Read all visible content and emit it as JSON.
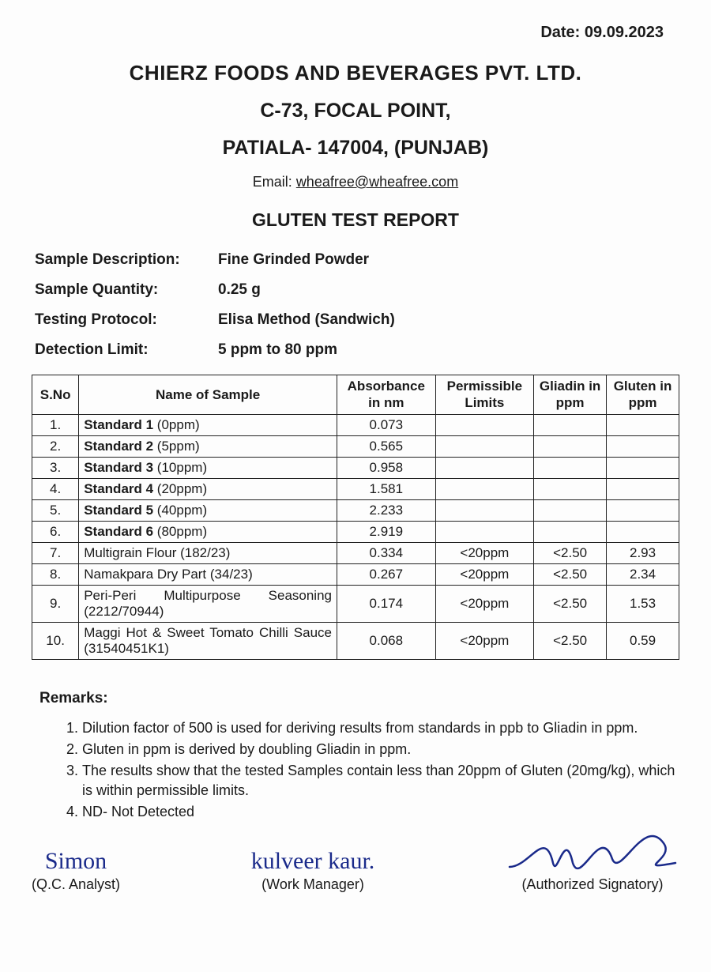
{
  "date_label": "Date: 09.09.2023",
  "header": {
    "company": "CHIERZ FOODS AND BEVERAGES PVT. LTD.",
    "addr1": "C-73, FOCAL POINT,",
    "addr2": "PATIALA- 147004, (PUNJAB)",
    "email_label": "Email: ",
    "email": "wheafree@wheafree.com",
    "report_title": "GLUTEN TEST REPORT"
  },
  "meta": {
    "sample_desc_label": "Sample Description:",
    "sample_desc": "Fine Grinded Powder",
    "sample_qty_label": "Sample Quantity:",
    "sample_qty": "0.25 g",
    "protocol_label": "Testing Protocol:",
    "protocol": "Elisa Method (Sandwich)",
    "detection_label": "Detection Limit:",
    "detection": "5 ppm to 80 ppm"
  },
  "table": {
    "headers": {
      "sno": "S.No",
      "name": "Name of Sample",
      "abs": "Absorbance in nm",
      "perm": "Permissible Limits",
      "gliadin": "Gliadin in ppm",
      "gluten": "Gluten in ppm"
    },
    "standards": [
      {
        "sno": "1.",
        "name": "Standard 1",
        "sub": " (0ppm)",
        "abs": "0.073"
      },
      {
        "sno": "2.",
        "name": "Standard 2",
        "sub": " (5ppm)",
        "abs": "0.565"
      },
      {
        "sno": "3.",
        "name": "Standard 3",
        "sub": " (10ppm)",
        "abs": "0.958"
      },
      {
        "sno": "4.",
        "name": "Standard 4",
        "sub": " (20ppm)",
        "abs": "1.581"
      },
      {
        "sno": "5.",
        "name": "Standard 5",
        "sub": " (40ppm)",
        "abs": "2.233"
      },
      {
        "sno": "6.",
        "name": "Standard 6",
        "sub": " (80ppm)",
        "abs": "2.919"
      }
    ],
    "samples": [
      {
        "sno": "7.",
        "name": "Multigrain Flour (182/23)",
        "abs": "0.334",
        "perm": "<20ppm",
        "glia": "<2.50",
        "glut": "2.93"
      },
      {
        "sno": "8.",
        "name": "Namakpara Dry Part (34/23)",
        "abs": "0.267",
        "perm": "<20ppm",
        "glia": "<2.50",
        "glut": "2.34"
      },
      {
        "sno": "9.",
        "name": "Peri-Peri Multipurpose Seasoning (2212/70944)",
        "abs": "0.174",
        "perm": "<20ppm",
        "glia": "<2.50",
        "glut": "1.53"
      },
      {
        "sno": "10.",
        "name": "Maggi Hot & Sweet Tomato Chilli Sauce (31540451K1)",
        "abs": "0.068",
        "perm": "<20ppm",
        "glia": "<2.50",
        "glut": "0.59"
      }
    ]
  },
  "remarks": {
    "title": "Remarks:",
    "items": [
      "Dilution factor of 500 is used for deriving results from standards in ppb to Gliadin in ppm.",
      "Gluten in ppm is derived by doubling Gliadin in ppm.",
      "The results show that the tested Samples contain less than 20ppm of Gluten (20mg/kg), which is within permissible limits.",
      "ND- Not Detected"
    ]
  },
  "signatures": {
    "qc": "(Q.C. Analyst)",
    "wm": "(Work Manager)",
    "auth": "(Authorized Signatory)",
    "qc_name": "Simon",
    "wm_name": "kulveer kaur.",
    "auth_name": ""
  },
  "style": {
    "text_color": "#1a1a1a",
    "ink_color": "#1a2a8a",
    "border_color": "#222222",
    "background": "#fdfdfd"
  }
}
